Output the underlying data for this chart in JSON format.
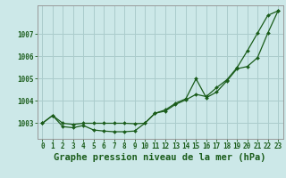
{
  "title": "Graphe pression niveau de la mer (hPa)",
  "background_color": "#cce8e8",
  "grid_color": "#aacccc",
  "line_color": "#1a5c1a",
  "marker_color": "#1a5c1a",
  "xlim": [
    -0.5,
    23.5
  ],
  "ylim": [
    1002.3,
    1008.3
  ],
  "yticks": [
    1003,
    1004,
    1005,
    1006,
    1007
  ],
  "xticks": [
    0,
    1,
    2,
    3,
    4,
    5,
    6,
    7,
    8,
    9,
    10,
    11,
    12,
    13,
    14,
    15,
    16,
    17,
    18,
    19,
    20,
    21,
    22,
    23
  ],
  "series1": [
    1003.0,
    1003.35,
    1002.85,
    1002.8,
    1002.9,
    1002.7,
    1002.65,
    1002.62,
    1002.62,
    1002.65,
    1003.0,
    1003.45,
    1003.55,
    1003.85,
    1004.05,
    1004.3,
    1004.2,
    1004.6,
    1004.95,
    1005.5,
    1006.25,
    1007.05,
    1007.85,
    1008.05
  ],
  "series2": [
    1003.0,
    1003.35,
    1003.0,
    1002.95,
    1003.0,
    1003.0,
    1003.0,
    1003.0,
    1003.0,
    1002.98,
    1003.0,
    1003.45,
    1003.6,
    1003.9,
    1004.1,
    1005.0,
    1004.15,
    1004.4,
    1004.9,
    1005.45,
    1005.55,
    1005.95,
    1007.05,
    1008.05
  ],
  "title_fontsize": 7.5,
  "tick_fontsize": 5.5
}
